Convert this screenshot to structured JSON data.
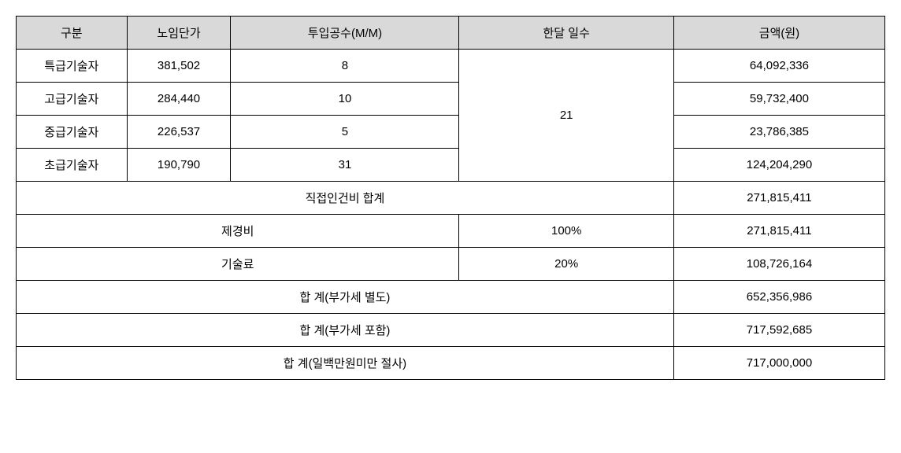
{
  "headers": {
    "category": "구분",
    "unit_price": "노임단가",
    "mm": "투입공수(M/M)",
    "days": "한달 일수",
    "amount": "금액(원)"
  },
  "rows": [
    {
      "category": "특급기술자",
      "unit_price": "381,502",
      "mm": "8",
      "amount": "64,092,336"
    },
    {
      "category": "고급기술자",
      "unit_price": "284,440",
      "mm": "10",
      "amount": "59,732,400"
    },
    {
      "category": "중급기술자",
      "unit_price": "226,537",
      "mm": "5",
      "amount": "23,786,385"
    },
    {
      "category": "초급기술자",
      "unit_price": "190,790",
      "mm": "31",
      "amount": "124,204,290"
    }
  ],
  "days_value": "21",
  "summary": {
    "direct_labor_label": "직접인건비 합계",
    "direct_labor_amount": "271,815,411",
    "overhead_label": "제경비",
    "overhead_pct": "100%",
    "overhead_amount": "271,815,411",
    "tech_fee_label": "기술료",
    "tech_fee_pct": "20%",
    "tech_fee_amount": "108,726,164",
    "total_ex_vat_label": "합 계(부가세 별도)",
    "total_ex_vat_amount": "652,356,986",
    "total_inc_vat_label": "합 계(부가세 포함)",
    "total_inc_vat_amount": "717,592,685",
    "total_rounded_label": "합 계(일백만원미만 절사)",
    "total_rounded_amount": "717,000,000"
  }
}
